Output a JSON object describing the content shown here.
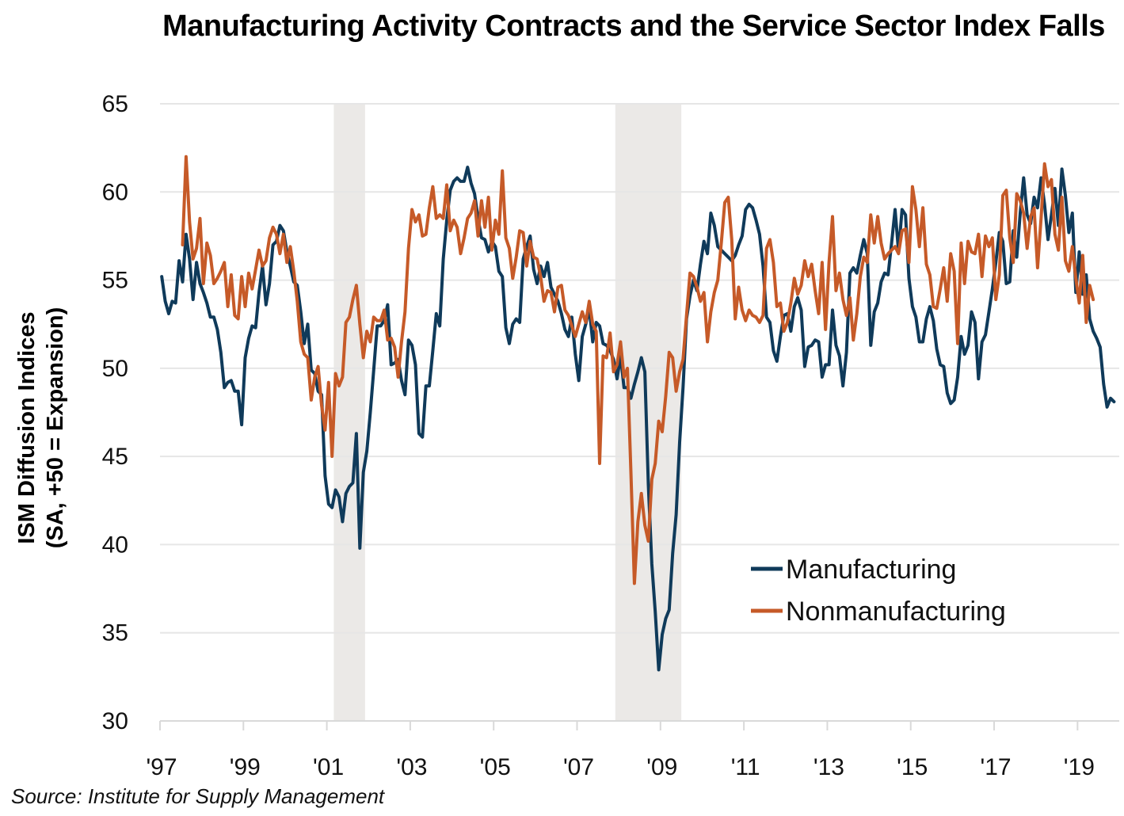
{
  "chart_data": {
    "type": "line",
    "title": "Manufacturing Activity Contracts and the Service Sector Index Falls",
    "ylabel": "ISM Diffusion Indices (SA, +50 = Expansion)",
    "ylabel_lines": [
      "ISM Diffusion Indices",
      "(SA, +50 = Expansion)"
    ],
    "xlabel": "",
    "source": "Source: Institute for Supply Management",
    "ylim": [
      30,
      65
    ],
    "yticks": [
      30,
      35,
      40,
      45,
      50,
      55,
      60,
      65
    ],
    "ytick_labels": [
      "30",
      "35",
      "40",
      "45",
      "50",
      "55",
      "60",
      "65"
    ],
    "xlim": [
      "1997-01",
      "2019-12"
    ],
    "xticks": [
      "1997",
      "1999",
      "2001",
      "2003",
      "2005",
      "2007",
      "2009",
      "2011",
      "2013",
      "2015",
      "2017",
      "2019"
    ],
    "xtick_labels": [
      "'97",
      "'99",
      "'01",
      "'03",
      "'05",
      "'07",
      "'09",
      "'11",
      "'13",
      "'15",
      "'17",
      "'19"
    ],
    "grid": "horizontal",
    "legend": "bottom-right",
    "recessions": [
      {
        "start": "2001-03",
        "end": "2001-11"
      },
      {
        "start": "2007-12",
        "end": "2009-06"
      }
    ],
    "colors": {
      "Manufacturing": "#0f3a5a",
      "Nonmanufacturing": "#c65a28",
      "recession": "#ebe9e7",
      "grid": "#e6e6e6"
    },
    "series": [
      {
        "name": "Manufacturing",
        "start": "1997-01",
        "frequency": "monthly",
        "values": [
          55.2,
          53.8,
          53.1,
          53.8,
          53.7,
          56.1,
          54.9,
          57.6,
          56.2,
          53.9,
          56.0,
          54.8,
          54.3,
          53.7,
          52.9,
          52.9,
          52.2,
          50.9,
          48.9,
          49.2,
          49.3,
          48.7,
          48.7,
          46.8,
          50.6,
          51.7,
          52.4,
          52.3,
          54.3,
          55.8,
          53.6,
          54.8,
          57.0,
          57.2,
          58.1,
          57.8,
          56.6,
          55.8,
          54.9,
          54.7,
          53.2,
          51.4,
          52.5,
          49.9,
          49.7,
          48.7,
          48.5,
          43.9,
          42.3,
          42.1,
          43.1,
          42.7,
          41.3,
          42.9,
          43.3,
          43.5,
          46.3,
          39.8,
          44.1,
          45.3,
          47.5,
          49.9,
          52.4,
          52.4,
          52.7,
          53.6,
          50.2,
          50.3,
          50.5,
          49.3,
          48.5,
          51.6,
          51.3,
          50.2,
          46.3,
          46.1,
          49.0,
          49.0,
          51.0,
          53.1,
          52.4,
          56.2,
          58.4,
          60.1,
          60.6,
          60.8,
          60.6,
          60.6,
          61.4,
          60.5,
          59.9,
          58.5,
          57.4,
          57.3,
          56.6,
          57.2,
          56.9,
          55.5,
          55.2,
          52.3,
          51.4,
          52.5,
          52.8,
          52.6,
          56.2,
          56.9,
          57.5,
          55.6,
          54.8,
          55.8,
          55.2,
          56.0,
          54.6,
          54.2,
          53.8,
          53.1,
          52.2,
          51.8,
          52.9,
          50.8,
          49.3,
          51.8,
          52.5,
          53.4,
          51.5,
          52.6,
          52.4,
          51.4,
          51.3,
          51.0,
          50.5,
          49.4,
          50.7,
          48.9,
          48.9,
          48.3,
          49.1,
          49.8,
          50.6,
          49.8,
          43.4,
          38.9,
          36.2,
          32.9,
          34.9,
          35.8,
          36.3,
          39.5,
          41.7,
          45.8,
          48.9,
          52.8,
          54.1,
          55.0,
          54.4,
          55.9,
          57.2,
          56.5,
          58.8,
          58.1,
          56.9,
          56.7,
          56.5,
          56.3,
          56.1,
          56.4,
          57.0,
          57.5,
          59.0,
          59.3,
          59.1,
          58.4,
          57.6,
          55.8,
          52.9,
          52.6,
          51.0,
          50.4,
          51.8,
          53.0,
          53.1,
          52.1,
          53.5,
          54.0,
          53.3,
          50.1,
          51.2,
          51.3,
          51.6,
          51.5,
          49.5,
          50.2,
          50.2,
          53.3,
          51.3,
          50.7,
          49.0,
          50.9,
          55.4,
          55.7,
          55.4,
          56.4,
          57.3,
          56.5,
          51.3,
          53.2,
          53.7,
          54.9,
          55.4,
          55.3,
          57.1,
          59.0,
          56.6,
          59.0,
          58.7,
          55.1,
          53.5,
          52.9,
          51.5,
          51.5,
          52.8,
          53.5,
          52.7,
          51.1,
          50.2,
          50.1,
          48.6,
          48.0,
          48.2,
          49.5,
          51.8,
          50.8,
          51.3,
          53.2,
          52.6,
          49.4,
          51.5,
          51.9,
          53.2,
          54.5,
          56.0,
          57.7,
          57.2,
          54.8,
          54.9,
          57.8,
          56.3,
          58.8,
          60.8,
          58.7,
          58.2,
          59.7,
          59.1,
          60.8,
          59.3,
          57.3,
          58.7,
          60.2,
          58.1,
          61.3,
          59.8,
          57.7,
          58.8,
          54.3,
          56.6,
          54.2,
          55.3,
          52.8,
          52.1,
          51.7,
          51.2,
          49.1,
          47.8,
          48.3,
          48.1
        ]
      },
      {
        "name": "Nonmanufacturing",
        "start": "1997-07",
        "frequency": "monthly",
        "values": [
          57.0,
          62.0,
          58.3,
          56.2,
          56.8,
          58.5,
          54.8,
          57.1,
          56.4,
          54.8,
          55.1,
          55.5,
          56.0,
          53.5,
          55.3,
          53.0,
          52.8,
          55.2,
          53.5,
          55.4,
          54.5,
          55.6,
          56.7,
          55.8,
          56.1,
          57.4,
          58.0,
          57.6,
          56.5,
          57.6,
          56.0,
          56.9,
          55.5,
          53.8,
          51.5,
          50.8,
          50.6,
          48.2,
          49.5,
          50.1,
          47.9,
          46.5,
          49.2,
          45.0,
          49.7,
          49.0,
          49.5,
          52.6,
          52.9,
          53.9,
          54.7,
          52.5,
          50.6,
          52.1,
          51.5,
          52.9,
          52.7,
          52.7,
          53.3,
          51.6,
          51.7,
          51.2,
          49.5,
          51.5,
          53.2,
          56.8,
          59.0,
          58.3,
          58.7,
          57.5,
          57.6,
          59.1,
          60.3,
          58.5,
          58.7,
          58.5,
          60.4,
          57.8,
          58.4,
          58.0,
          56.5,
          57.4,
          58.5,
          58.8,
          59.5,
          57.5,
          59.5,
          58.0,
          59.7,
          56.7,
          58.4,
          57.6,
          61.2,
          57.4,
          56.8,
          55.1,
          56.3,
          57.8,
          57.7,
          55.8,
          57.2,
          56.3,
          56.2,
          55.2,
          53.8,
          54.4,
          54.3,
          53.2,
          54.6,
          54.7,
          53.3,
          53.0,
          52.4,
          51.8,
          52.5,
          53.2,
          52.6,
          53.8,
          52.5,
          52.1,
          44.6,
          50.7,
          50.6,
          52.0,
          49.8,
          50.2,
          51.5,
          49.5,
          50.0,
          44.1,
          37.8,
          41.3,
          42.9,
          41.1,
          40.2,
          43.7,
          44.6,
          47.0,
          46.4,
          48.4,
          50.9,
          50.6,
          48.7,
          49.8,
          50.5,
          53.0,
          55.4,
          55.2,
          54.6,
          53.8,
          54.3,
          51.5,
          53.2,
          54.3,
          55.0,
          57.1,
          59.4,
          59.7,
          57.3,
          52.8,
          54.6,
          53.3,
          52.7,
          53.3,
          53.0,
          52.9,
          52.6,
          53.0,
          56.8,
          57.3,
          56.0,
          53.5,
          53.7,
          52.1,
          52.6,
          53.7,
          55.1,
          54.2,
          54.7,
          56.1,
          55.2,
          55.9,
          54.4,
          53.1,
          56.0,
          52.2,
          56.0,
          58.6,
          54.4,
          55.4,
          53.9,
          53.0,
          54.0,
          51.6,
          53.1,
          55.2,
          56.3,
          56.0,
          58.7,
          57.1,
          58.6,
          57.1,
          56.2,
          56.5,
          56.7,
          56.9,
          56.5,
          57.8,
          57.9,
          56.0,
          60.3,
          59.0,
          56.9,
          59.1,
          55.9,
          55.3,
          53.5,
          53.4,
          54.5,
          55.7,
          53.8,
          56.5,
          55.5,
          51.4,
          57.1,
          54.8,
          57.2,
          56.6,
          56.5,
          57.6,
          55.2,
          57.5,
          56.9,
          57.4,
          53.9,
          55.3,
          59.8,
          60.1,
          57.4,
          56.0,
          59.9,
          59.5,
          58.8,
          56.8,
          58.6,
          59.1,
          55.7,
          58.5,
          61.6,
          60.3,
          60.7,
          57.6,
          56.7,
          59.7,
          56.1,
          55.5,
          56.9,
          55.1,
          53.7,
          56.4,
          52.6,
          54.7,
          53.9
        ]
      }
    ]
  }
}
